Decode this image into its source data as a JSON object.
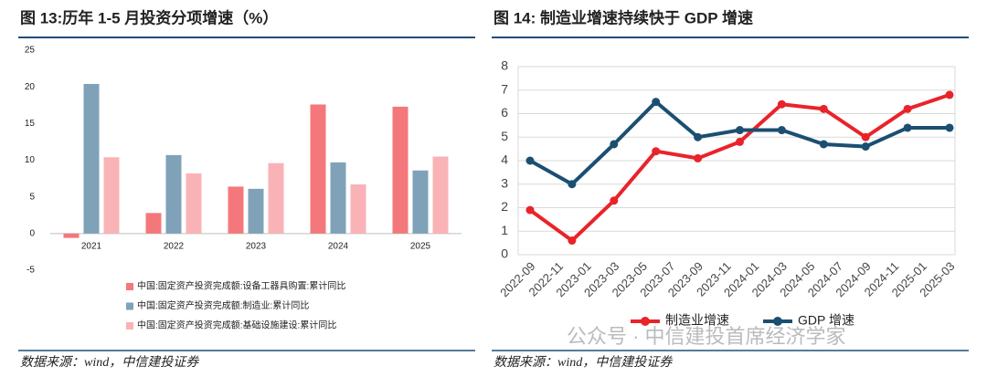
{
  "chart_data": [
    {
      "type": "bar",
      "title": "图 13:历年 1-5 月投资分项增速（%）",
      "categories": [
        "2021",
        "2022",
        "2023",
        "2024",
        "2025"
      ],
      "series": [
        {
          "name": "中国:固定资产投资完成额:设备工器具购置:累计同比",
          "color": "#f4787b",
          "values": [
            -0.6,
            2.8,
            6.4,
            17.6,
            17.3
          ]
        },
        {
          "name": "中国:固定资产投资完成额:制造业:累计同比",
          "color": "#7fa2b8",
          "values": [
            20.4,
            10.7,
            6.1,
            9.7,
            8.6
          ]
        },
        {
          "name": "中国:固定资产投资完成额:基础设施建设:累计同比",
          "color": "#f9b3b7",
          "values": [
            10.4,
            8.2,
            9.6,
            6.7,
            10.5
          ]
        }
      ],
      "ylim": [
        -5,
        25
      ],
      "yticks": [
        -5,
        0,
        5,
        10,
        15,
        20,
        25
      ],
      "source": "数据来源：wind，中信建投证券"
    },
    {
      "type": "line",
      "title": "图 14: 制造业增速持续快于 GDP 增速",
      "x": [
        "2022-09",
        "2022-12",
        "2023-03",
        "2023-06",
        "2023-09",
        "2023-12",
        "2024-03",
        "2024-06",
        "2024-09",
        "2024-12",
        "2025-03"
      ],
      "series": [
        {
          "name": "制造业增速",
          "color": "#e8242a",
          "values": [
            1.9,
            0.6,
            2.3,
            4.4,
            4.1,
            4.8,
            6.4,
            6.2,
            5.0,
            6.2,
            6.8
          ]
        },
        {
          "name": "GDP 增速",
          "color": "#1b4f72",
          "values": [
            4.0,
            3.0,
            4.7,
            6.5,
            5.0,
            5.3,
            5.3,
            4.7,
            4.6,
            5.4,
            5.4
          ]
        }
      ],
      "xlim": [
        "2022-09",
        "2025-03"
      ],
      "xticks": [
        "2022-09",
        "2022-11",
        "2023-01",
        "2023-03",
        "2023-05",
        "2023-07",
        "2023-09",
        "2023-11",
        "2024-01",
        "2024-03",
        "2024-05",
        "2024-07",
        "2024-09",
        "2024-11",
        "2025-01",
        "2025-03"
      ],
      "ylim": [
        0,
        8
      ],
      "yticks": [
        0,
        1,
        2,
        3,
        4,
        5,
        6,
        7,
        8
      ],
      "grid": true,
      "source": "数据来源：wind，中信建投证券"
    }
  ],
  "watermark": "公众号 · 中信建投首席经济学家"
}
